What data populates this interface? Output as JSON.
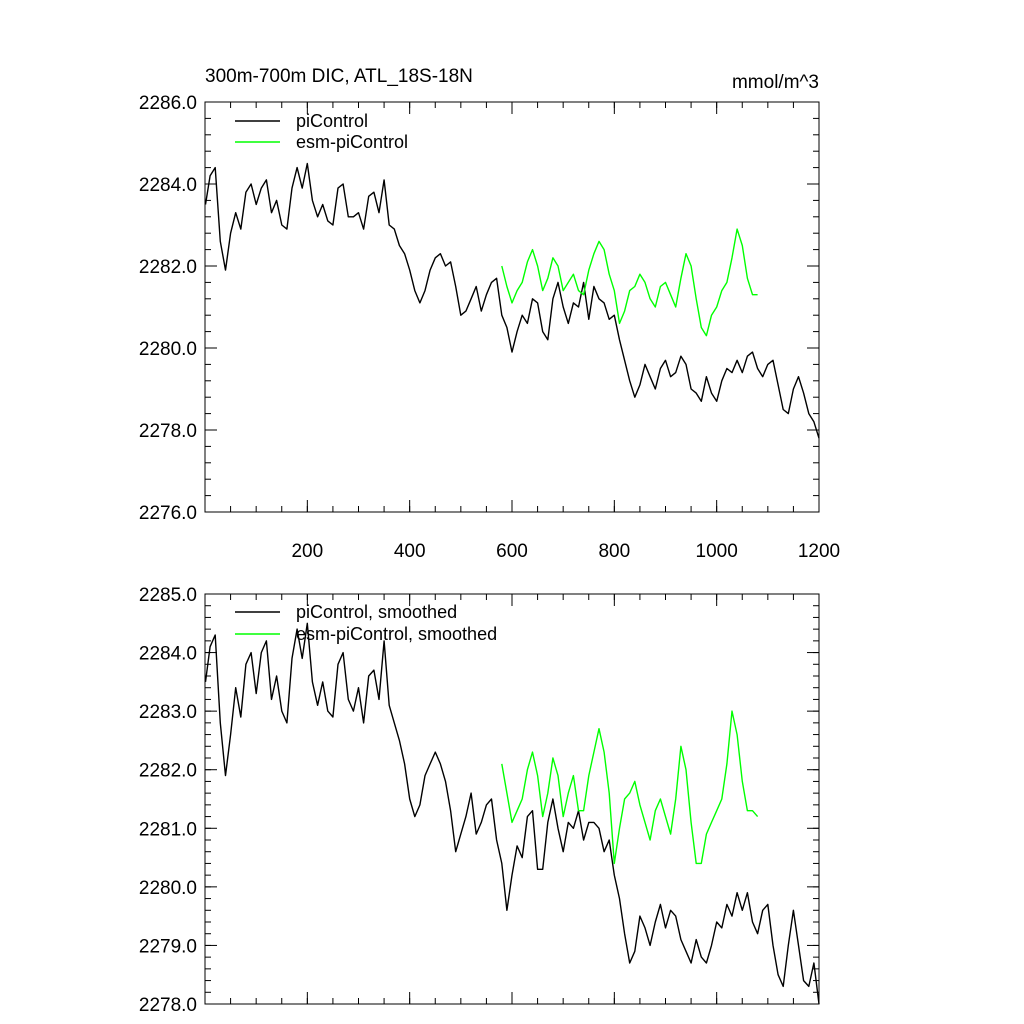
{
  "chart_data": [
    {
      "type": "line",
      "title": "300m-700m DIC, ATL_18S-18N",
      "units_label": "mmol/m^3",
      "xlim": [
        0,
        1200
      ],
      "ylim": [
        2276.0,
        2286.0
      ],
      "x_ticks": [
        200,
        400,
        600,
        800,
        1000,
        1200
      ],
      "y_ticks": [
        2276.0,
        2278.0,
        2280.0,
        2282.0,
        2284.0,
        2286.0
      ],
      "y_tick_labels": [
        "2276.0",
        "2278.0",
        "2280.0",
        "2282.0",
        "2284.0",
        "2286.0"
      ],
      "legend_position": "top-left",
      "series": [
        {
          "name": "piControl",
          "color": "#000000",
          "x": [
            1,
            10,
            20,
            30,
            40,
            50,
            60,
            70,
            80,
            90,
            100,
            110,
            120,
            130,
            140,
            150,
            160,
            170,
            180,
            190,
            200,
            210,
            220,
            230,
            240,
            250,
            260,
            270,
            280,
            290,
            300,
            310,
            320,
            330,
            340,
            350,
            360,
            370,
            380,
            390,
            400,
            410,
            420,
            430,
            440,
            450,
            460,
            470,
            480,
            490,
            500,
            510,
            520,
            530,
            540,
            550,
            560,
            570,
            580,
            590,
            600,
            610,
            620,
            630,
            640,
            650,
            660,
            670,
            680,
            690,
            700,
            710,
            720,
            730,
            740,
            750,
            760,
            770,
            780,
            790,
            800,
            810,
            820,
            830,
            840,
            850,
            860,
            870,
            880,
            890,
            900,
            910,
            920,
            930,
            940,
            950,
            960,
            970,
            980,
            990,
            1000,
            1010,
            1020,
            1030,
            1040,
            1050,
            1060,
            1070,
            1080,
            1090,
            1100,
            1110,
            1120,
            1130,
            1140,
            1150,
            1160,
            1170,
            1180,
            1190,
            1200
          ],
          "values": [
            2283.5,
            2284.2,
            2284.4,
            2282.6,
            2281.9,
            2282.8,
            2283.3,
            2282.9,
            2283.8,
            2284.0,
            2283.5,
            2283.9,
            2284.1,
            2283.3,
            2283.6,
            2283.0,
            2282.9,
            2283.9,
            2284.4,
            2283.9,
            2284.5,
            2283.6,
            2283.2,
            2283.5,
            2283.1,
            2283.0,
            2283.9,
            2284.0,
            2283.2,
            2283.2,
            2283.3,
            2282.9,
            2283.7,
            2283.8,
            2283.3,
            2284.1,
            2283.0,
            2282.9,
            2282.5,
            2282.3,
            2281.9,
            2281.4,
            2281.1,
            2281.4,
            2281.9,
            2282.2,
            2282.3,
            2282.0,
            2282.1,
            2281.5,
            2280.8,
            2280.9,
            2281.2,
            2281.5,
            2280.9,
            2281.3,
            2281.6,
            2281.7,
            2280.8,
            2280.5,
            2279.9,
            2280.4,
            2280.8,
            2280.6,
            2281.2,
            2281.1,
            2280.4,
            2280.2,
            2281.2,
            2281.6,
            2281.0,
            2280.6,
            2281.1,
            2281.0,
            2281.6,
            2280.7,
            2281.5,
            2281.2,
            2281.1,
            2280.7,
            2280.8,
            2280.2,
            2279.7,
            2279.2,
            2278.8,
            2279.1,
            2279.6,
            2279.3,
            2279.0,
            2279.5,
            2279.7,
            2279.3,
            2279.4,
            2279.8,
            2279.6,
            2279.0,
            2278.9,
            2278.7,
            2279.3,
            2278.9,
            2278.7,
            2279.2,
            2279.5,
            2279.4,
            2279.7,
            2279.4,
            2279.8,
            2279.9,
            2279.5,
            2279.3,
            2279.6,
            2279.7,
            2279.1,
            2278.5,
            2278.4,
            2279.0,
            2279.3,
            2278.9,
            2278.4,
            2278.2,
            2277.8
          ]
        },
        {
          "name": "esm-piControl",
          "color": "#00ff00",
          "x": [
            580,
            590,
            600,
            610,
            620,
            630,
            640,
            650,
            660,
            670,
            680,
            690,
            700,
            710,
            720,
            730,
            740,
            750,
            760,
            770,
            780,
            790,
            800,
            810,
            820,
            830,
            840,
            850,
            860,
            870,
            880,
            890,
            900,
            910,
            920,
            930,
            940,
            950,
            960,
            970,
            980,
            990,
            1000,
            1010,
            1020,
            1030,
            1040,
            1050,
            1060,
            1070,
            1080
          ],
          "values": [
            2282.0,
            2281.5,
            2281.1,
            2281.4,
            2281.6,
            2282.1,
            2282.4,
            2282.0,
            2281.4,
            2281.7,
            2282.2,
            2282.0,
            2281.4,
            2281.6,
            2281.8,
            2281.4,
            2281.3,
            2281.9,
            2282.3,
            2282.6,
            2282.4,
            2281.8,
            2281.4,
            2280.6,
            2280.9,
            2281.4,
            2281.5,
            2281.8,
            2281.6,
            2281.2,
            2281.0,
            2281.5,
            2281.6,
            2281.3,
            2281.0,
            2281.7,
            2282.3,
            2282.0,
            2281.2,
            2280.5,
            2280.3,
            2280.8,
            2281.0,
            2281.4,
            2281.6,
            2282.2,
            2282.9,
            2282.5,
            2281.7,
            2281.3,
            2281.3
          ]
        }
      ]
    },
    {
      "type": "line",
      "xlim": [
        0,
        1200
      ],
      "ylim": [
        2278.0,
        2285.0
      ],
      "x_ticks": [
        200,
        400,
        600,
        800,
        1000,
        1200
      ],
      "y_ticks": [
        2278.0,
        2279.0,
        2280.0,
        2281.0,
        2282.0,
        2283.0,
        2284.0,
        2285.0
      ],
      "y_tick_labels": [
        "2278.0",
        "2279.0",
        "2280.0",
        "2281.0",
        "2282.0",
        "2283.0",
        "2284.0",
        "2285.0"
      ],
      "legend_position": "top-left",
      "series": [
        {
          "name": "piControl, smoothed",
          "color": "#000000",
          "x": [
            1,
            10,
            20,
            30,
            40,
            50,
            60,
            70,
            80,
            90,
            100,
            110,
            120,
            130,
            140,
            150,
            160,
            170,
            180,
            190,
            200,
            210,
            220,
            230,
            240,
            250,
            260,
            270,
            280,
            290,
            300,
            310,
            320,
            330,
            340,
            350,
            360,
            370,
            380,
            390,
            400,
            410,
            420,
            430,
            440,
            450,
            460,
            470,
            480,
            490,
            500,
            510,
            520,
            530,
            540,
            550,
            560,
            570,
            580,
            590,
            600,
            610,
            620,
            630,
            640,
            650,
            660,
            670,
            680,
            690,
            700,
            710,
            720,
            730,
            740,
            750,
            760,
            770,
            780,
            790,
            800,
            810,
            820,
            830,
            840,
            850,
            860,
            870,
            880,
            890,
            900,
            910,
            920,
            930,
            940,
            950,
            960,
            970,
            980,
            990,
            1000,
            1010,
            1020,
            1030,
            1040,
            1050,
            1060,
            1070,
            1080,
            1090,
            1100,
            1110,
            1120,
            1130,
            1140,
            1150,
            1160,
            1170,
            1180,
            1190,
            1200
          ],
          "values": [
            2283.5,
            2284.1,
            2284.3,
            2282.8,
            2281.9,
            2282.6,
            2283.4,
            2282.9,
            2283.8,
            2284.0,
            2283.3,
            2284.0,
            2284.2,
            2283.2,
            2283.6,
            2283.0,
            2282.8,
            2283.9,
            2284.4,
            2283.9,
            2284.5,
            2283.5,
            2283.1,
            2283.5,
            2283.0,
            2282.9,
            2283.8,
            2284.0,
            2283.2,
            2283.0,
            2283.4,
            2282.8,
            2283.6,
            2283.7,
            2283.2,
            2284.2,
            2283.1,
            2282.8,
            2282.5,
            2282.1,
            2281.5,
            2281.2,
            2281.4,
            2281.9,
            2282.1,
            2282.3,
            2282.1,
            2281.8,
            2281.3,
            2280.6,
            2280.9,
            2281.2,
            2281.6,
            2280.9,
            2281.1,
            2281.4,
            2281.5,
            2280.8,
            2280.4,
            2279.6,
            2280.2,
            2280.7,
            2280.5,
            2281.2,
            2281.3,
            2280.3,
            2280.3,
            2281.1,
            2281.5,
            2281.0,
            2280.6,
            2281.1,
            2281.0,
            2281.3,
            2280.8,
            2281.1,
            2281.1,
            2281.0,
            2280.6,
            2280.8,
            2280.2,
            2279.8,
            2279.2,
            2278.7,
            2278.9,
            2279.5,
            2279.3,
            2279.0,
            2279.4,
            2279.7,
            2279.3,
            2279.6,
            2279.5,
            2279.1,
            2278.9,
            2278.7,
            2279.1,
            2278.8,
            2278.7,
            2279.0,
            2279.4,
            2279.3,
            2279.7,
            2279.5,
            2279.9,
            2279.6,
            2279.9,
            2279.4,
            2279.2,
            2279.6,
            2279.7,
            2279.0,
            2278.5,
            2278.3,
            2279.0,
            2279.6,
            2279.0,
            2278.4,
            2278.3,
            2278.7,
            2278.0
          ]
        },
        {
          "name": "esm-piControl, smoothed",
          "color": "#00ff00",
          "x": [
            580,
            590,
            600,
            610,
            620,
            630,
            640,
            650,
            660,
            670,
            680,
            690,
            700,
            710,
            720,
            730,
            740,
            750,
            760,
            770,
            780,
            790,
            800,
            810,
            820,
            830,
            840,
            850,
            860,
            870,
            880,
            890,
            900,
            910,
            920,
            930,
            940,
            950,
            960,
            970,
            980,
            990,
            1000,
            1010,
            1020,
            1030,
            1040,
            1050,
            1060,
            1070,
            1080
          ],
          "values": [
            2282.1,
            2281.6,
            2281.1,
            2281.3,
            2281.5,
            2282.0,
            2282.3,
            2281.9,
            2281.2,
            2281.6,
            2282.2,
            2281.9,
            2281.2,
            2281.6,
            2281.9,
            2281.3,
            2281.3,
            2281.9,
            2282.3,
            2282.7,
            2282.3,
            2281.6,
            2280.4,
            2281.0,
            2281.5,
            2281.6,
            2281.8,
            2281.4,
            2281.1,
            2280.8,
            2281.3,
            2281.5,
            2281.2,
            2280.9,
            2281.5,
            2282.4,
            2282.0,
            2281.1,
            2280.4,
            2280.4,
            2280.9,
            2281.1,
            2281.3,
            2281.5,
            2282.1,
            2283.0,
            2282.6,
            2281.8,
            2281.3,
            2281.3,
            2281.2
          ]
        }
      ]
    }
  ]
}
